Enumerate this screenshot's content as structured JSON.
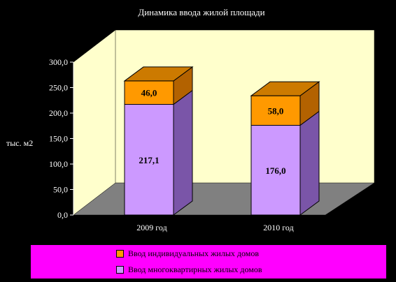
{
  "chart_data": {
    "type": "bar",
    "stacked": true,
    "title": "Динамика ввода жилой площади",
    "ylabel": "тыс. м2",
    "ylim": [
      0,
      300
    ],
    "yticks": [
      "0,0",
      "50,0",
      "100,0",
      "150,0",
      "200,0",
      "250,0",
      "300,0"
    ],
    "categories": [
      "2009 год",
      "2010 год"
    ],
    "series": [
      {
        "name": "Ввод многоквартирных жилых домов",
        "values": [
          217.1,
          176.0
        ],
        "labels": [
          "217,1",
          "176,0"
        ],
        "color": "#cc99ff",
        "side_color": "#7a55a8",
        "top_color": "#d9b3ff"
      },
      {
        "name": "Ввод индивидуальных жилых домов",
        "values": [
          46.0,
          58.0
        ],
        "labels": [
          "46,0",
          "58,0"
        ],
        "color": "#ff9900",
        "side_color": "#b36200",
        "top_color": "#cc7a00"
      }
    ],
    "legend_position": "bottom",
    "grid": false,
    "colors": {
      "background": "#000000",
      "wall": "#ffffcc",
      "floor": "#808080",
      "text": "#ffffff",
      "legend_bg": "#ff00ff"
    }
  }
}
